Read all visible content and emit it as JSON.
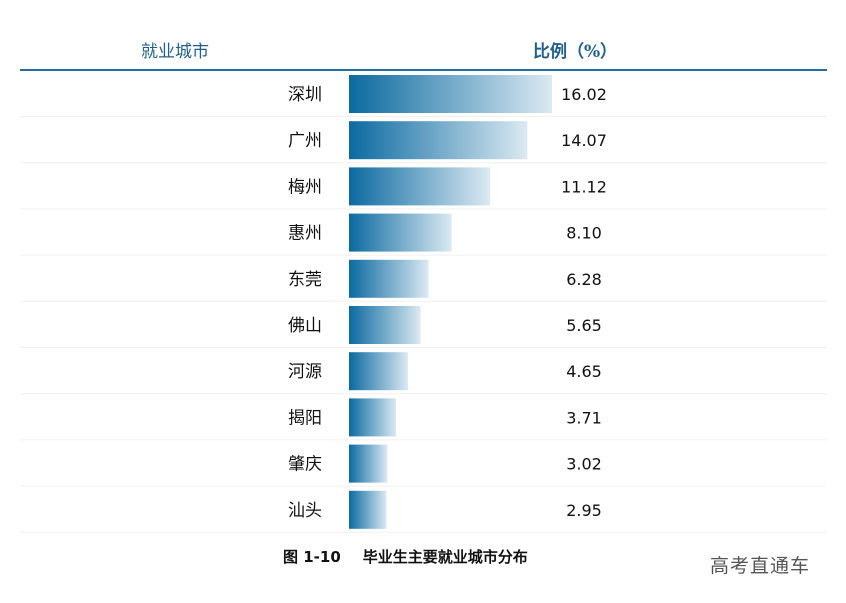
{
  "header": {
    "city_label": "就业城市",
    "pct_label": "比例（%）"
  },
  "chart_data": {
    "type": "bar",
    "orientation": "horizontal",
    "categories": [
      "深圳",
      "广州",
      "梅州",
      "惠州",
      "东莞",
      "佛山",
      "河源",
      "揭阳",
      "肇庆",
      "汕头"
    ],
    "values": [
      16.02,
      14.07,
      11.12,
      8.1,
      6.28,
      5.65,
      4.65,
      3.71,
      3.02,
      2.95
    ],
    "value_labels": [
      "16.02",
      "14.07",
      "11.12",
      "8.10",
      "6.28",
      "5.65",
      "4.65",
      "3.71",
      "3.02",
      "2.95"
    ],
    "xlim": [
      0,
      16.02
    ],
    "bar_color_start": "#0b6aa0",
    "bar_color_end": "#dbe9f2"
  },
  "caption": {
    "figure_no": "图 1-10",
    "title": "毕业生主要就业城市分布"
  },
  "watermark": "高考直通车"
}
